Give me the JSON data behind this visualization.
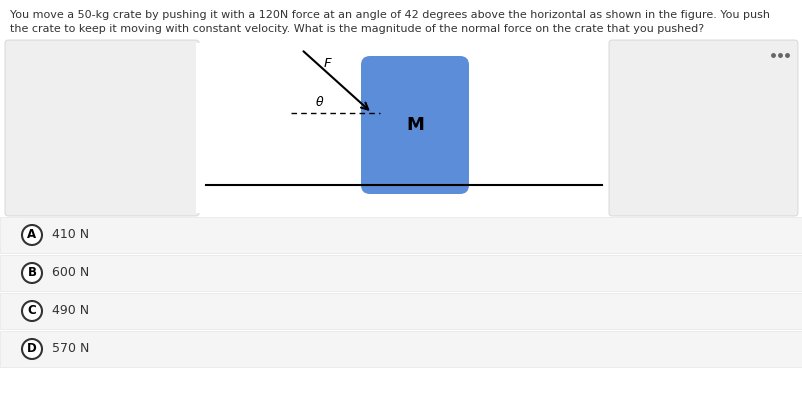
{
  "question_text_line1": "You move a 50-kg crate by pushing it with a 120N force at an angle of 42 degrees above the horizontal as shown in the figure. You push",
  "question_text_line2": "the crate to keep it moving with constant velocity. What is the magnitude of the normal force on the crate that you pushed?",
  "answers": [
    {
      "label": "A",
      "text": "410 N"
    },
    {
      "label": "B",
      "text": "600 N"
    },
    {
      "label": "C",
      "text": "490 N"
    },
    {
      "label": "D",
      "text": "570 N"
    }
  ],
  "bg_color": "#ffffff",
  "figure_bg": "#efefef",
  "crate_color": "#5b8dd9",
  "text_color": "#333333",
  "answer_bg": "#f5f5f5",
  "answer_border": "#e0e0e0",
  "dots_color": "#666666",
  "line_color": "#000000",
  "question_fontsize": 8.0,
  "answer_fontsize": 9.0,
  "label_fontsize": 8.5
}
